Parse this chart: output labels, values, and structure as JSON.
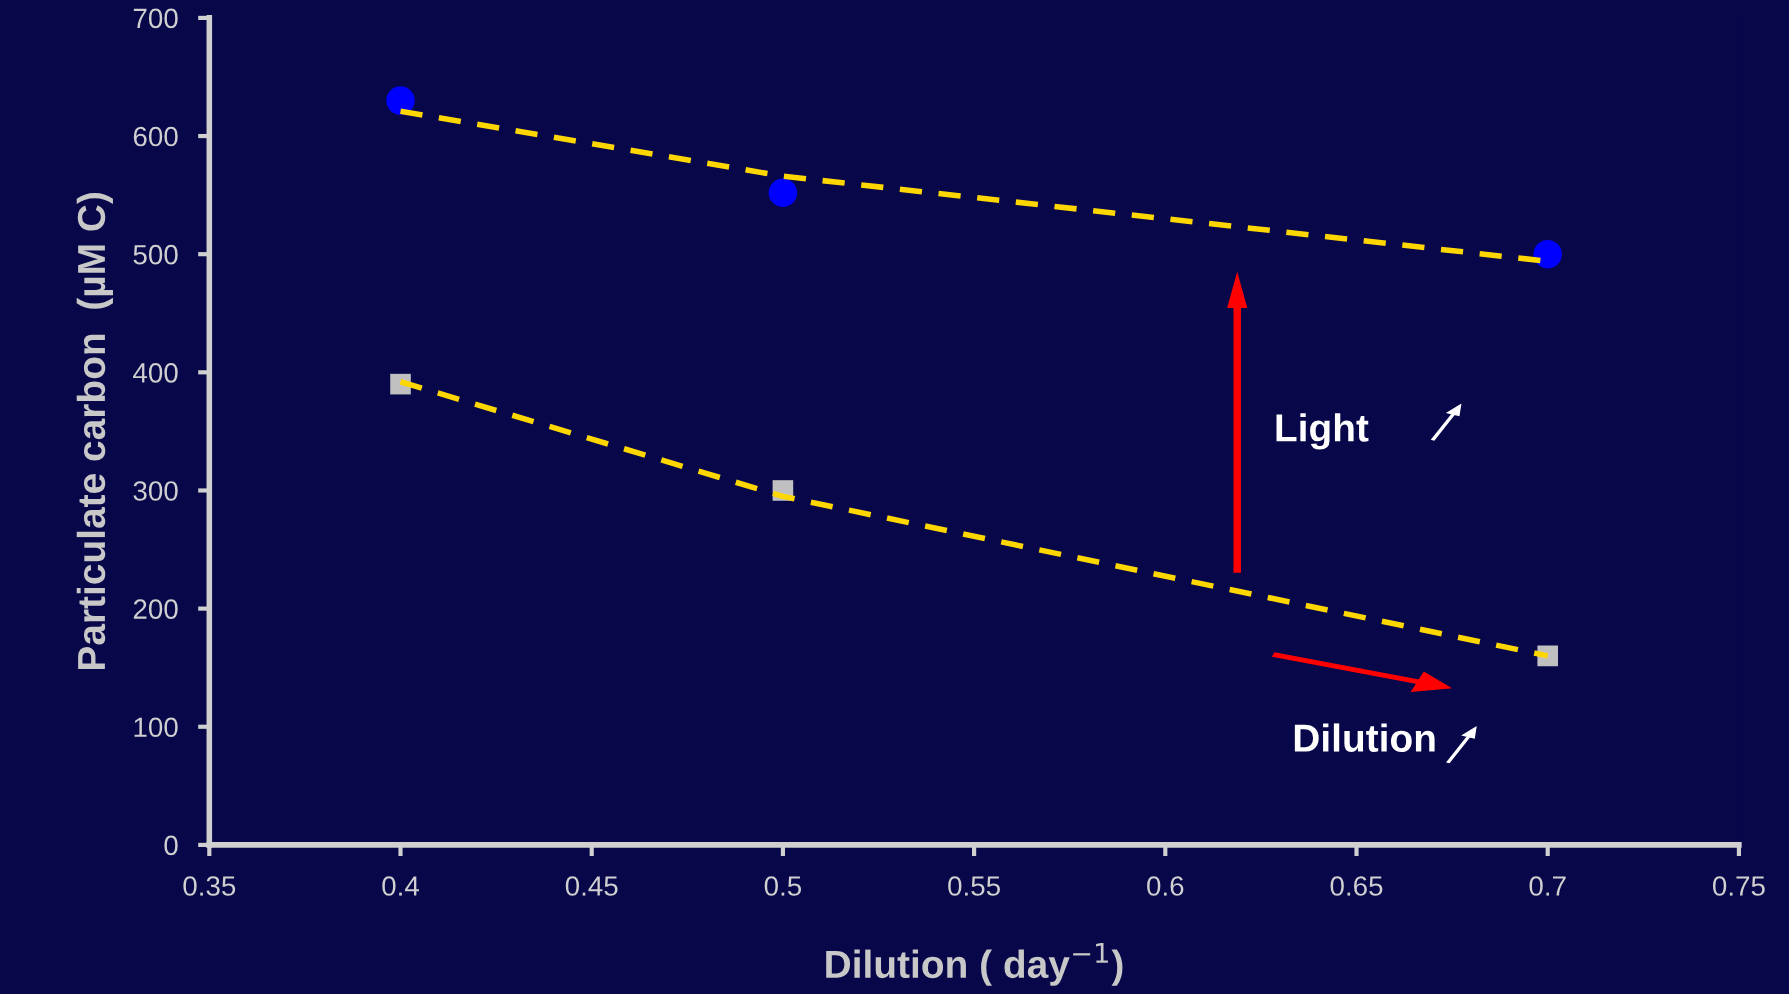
{
  "chart_data": {
    "type": "scatter",
    "xlabel": "Dilution ( day$^{−1}$)",
    "ylabel": "Particulate carbon  (µM C)",
    "xlim": [
      0.35,
      0.75
    ],
    "xticks": [
      0.35,
      0.4,
      0.45,
      0.5,
      0.55,
      0.6,
      0.65,
      0.7,
      0.75
    ],
    "ylim": [
      0,
      700
    ],
    "yticks": [
      0,
      100,
      200,
      300,
      400,
      500,
      600,
      700
    ],
    "grid": false,
    "legend": false,
    "x": [
      0.4,
      0.5,
      0.7
    ],
    "series": [
      {
        "marker": "circle",
        "color": "#0000ff",
        "values": [
          630,
          552,
          500
        ]
      },
      {
        "marker": "square",
        "color": "#c0c0c0",
        "values": [
          390,
          300,
          160
        ]
      },
      {
        "type": "line",
        "line_style": "dashed",
        "marker": "none",
        "color": "#ffd700",
        "values": [
          621,
          566,
          494
        ]
      },
      {
        "type": "line",
        "line_style": "dashed",
        "marker": "none",
        "color": "#ffd700",
        "values": [
          392,
          295,
          160
        ]
      }
    ],
    "annotations": [
      "Light",
      "Dilution"
    ]
  }
}
